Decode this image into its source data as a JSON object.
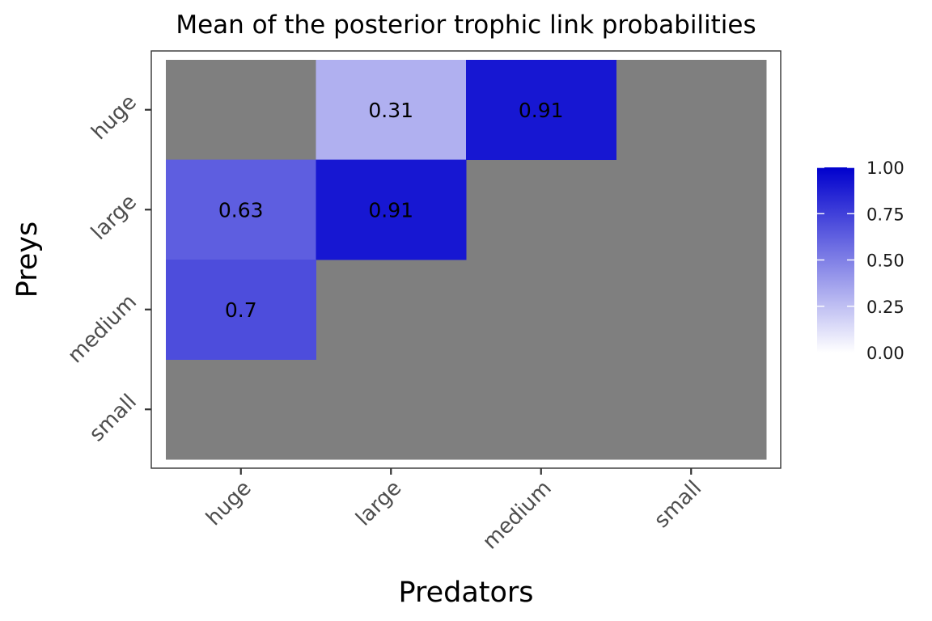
{
  "chart_data": {
    "type": "heatmap",
    "title": "Mean of the posterior trophic link probabilities",
    "xlabel": "Predators",
    "ylabel": "Preys",
    "x_categories": [
      "huge",
      "large",
      "medium",
      "small"
    ],
    "y_categories": [
      "huge",
      "large",
      "medium",
      "small"
    ],
    "cells": [
      {
        "x": "large",
        "y": "huge",
        "value": 0.31,
        "label": "0.31"
      },
      {
        "x": "medium",
        "y": "huge",
        "value": 0.91,
        "label": "0.91"
      },
      {
        "x": "huge",
        "y": "large",
        "value": 0.63,
        "label": "0.63"
      },
      {
        "x": "large",
        "y": "large",
        "value": 0.91,
        "label": "0.91"
      },
      {
        "x": "huge",
        "y": "medium",
        "value": 0.7,
        "label": "0.7"
      }
    ],
    "missing_color": "#7f7f7f",
    "color_scale": {
      "low": "#ffffff",
      "high": "#0000cd",
      "range": [
        0,
        1
      ]
    },
    "legend": {
      "position": "right",
      "ticks": [
        "1.00",
        "0.75",
        "0.50",
        "0.25",
        "0.00"
      ],
      "tick_values": [
        1.0,
        0.75,
        0.5,
        0.25,
        0.0
      ]
    },
    "grid": false
  }
}
